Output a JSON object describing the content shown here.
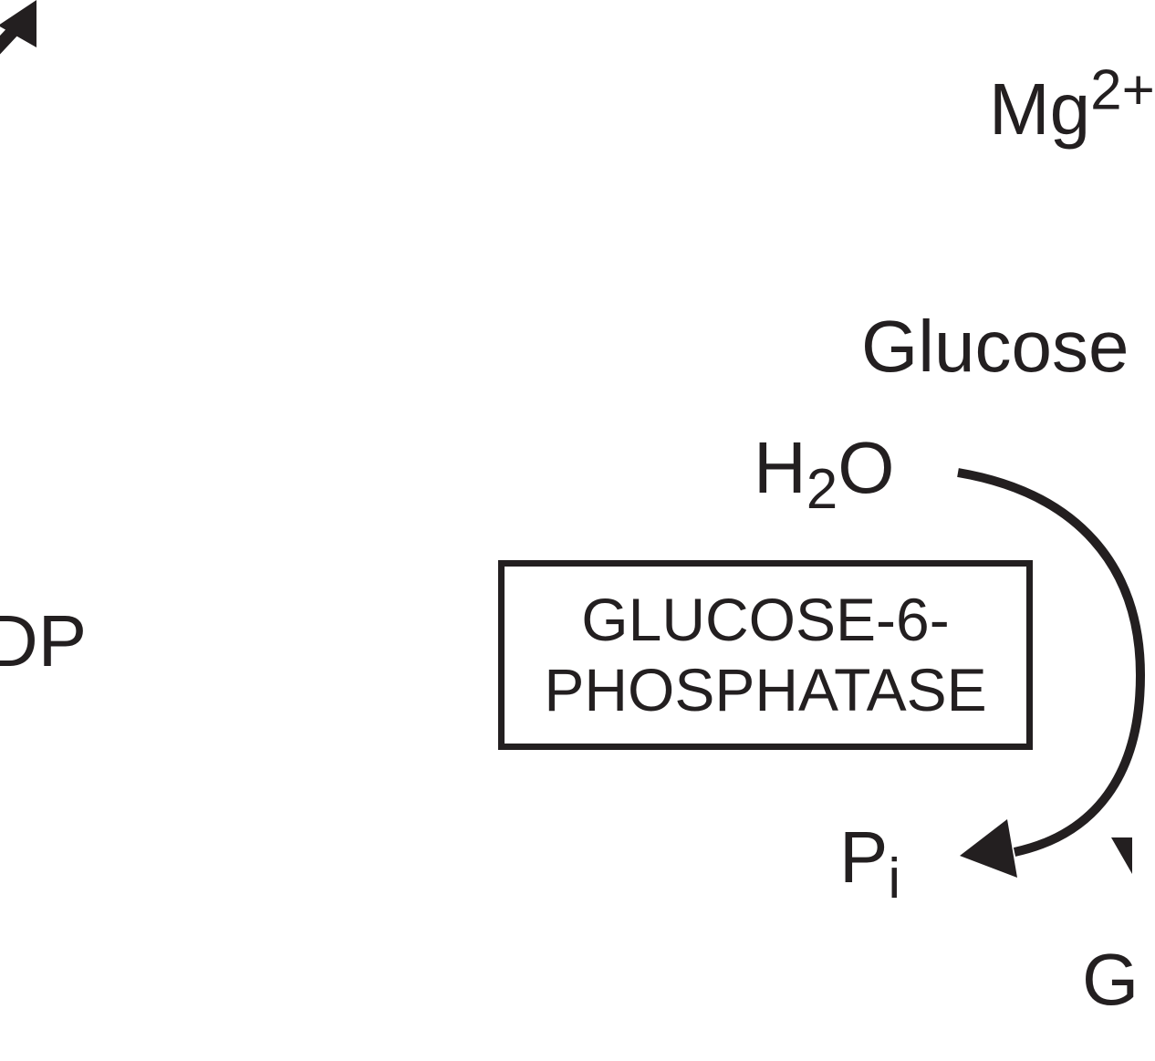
{
  "diagram": {
    "labels": {
      "mg_base": "Mg",
      "mg_sup": "2+",
      "glucose": "Glucose",
      "h2o_h": "H",
      "h2o_sub": "2",
      "h2o_o": "O",
      "pi_base": "P",
      "pi_sub": "i",
      "adp_partial": "DP",
      "g_partial": "G"
    },
    "enzyme": {
      "line1": "GLUCOSE-6-",
      "line2": "PHOSPHATASE"
    },
    "colors": {
      "ink": "#231f20",
      "background": "#ffffff"
    }
  }
}
